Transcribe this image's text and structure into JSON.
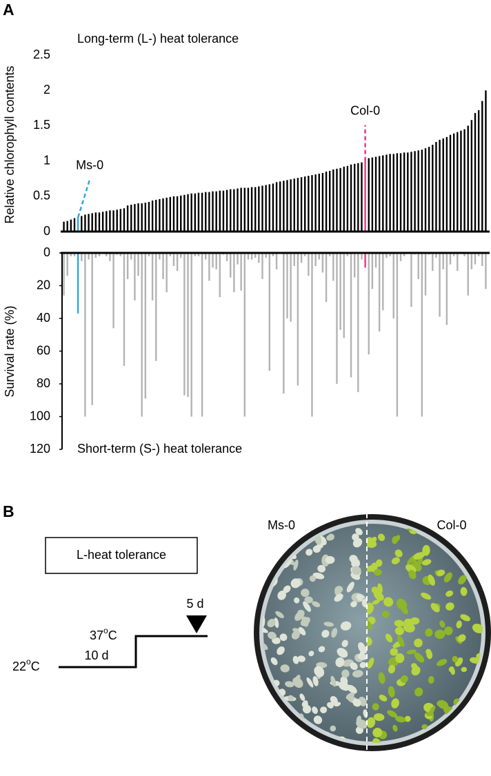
{
  "panel_labels": [
    "A",
    "B"
  ],
  "chart_data": [
    {
      "type": "bar",
      "title": "Long-term (L-) heat tolerance",
      "y_label": "Relative chlorophyll contents",
      "categories": [
        null,
        null,
        null,
        null,
        "Ms-0",
        null,
        null,
        null,
        null,
        null,
        null,
        null,
        null,
        null,
        null,
        null,
        null,
        null,
        null,
        null,
        null,
        null,
        null,
        null,
        null,
        null,
        null,
        null,
        null,
        null,
        null,
        null,
        null,
        null,
        null,
        null,
        null,
        null,
        null,
        null,
        null,
        null,
        null,
        null,
        null,
        null,
        null,
        null,
        null,
        null,
        null,
        null,
        null,
        null,
        null,
        null,
        null,
        null,
        null,
        null,
        null,
        null,
        null,
        null,
        null,
        null,
        null,
        null,
        null,
        null,
        null,
        null,
        null,
        null,
        null,
        null,
        null,
        null,
        null,
        null,
        null,
        null,
        null,
        null,
        null,
        "Col-0",
        null,
        null,
        null,
        null,
        null,
        null,
        null,
        null,
        null,
        null,
        null,
        null,
        null,
        null,
        null,
        null,
        null,
        null,
        null,
        null,
        null,
        null,
        null,
        null,
        null,
        null,
        null,
        null,
        null,
        null,
        null,
        null,
        null,
        null
      ],
      "values": [
        0.14,
        0.15,
        0.17,
        0.19,
        0.2,
        0.22,
        0.24,
        0.25,
        0.26,
        0.27,
        0.27,
        0.28,
        0.29,
        0.3,
        0.3,
        0.31,
        0.32,
        0.33,
        0.37,
        0.38,
        0.39,
        0.4,
        0.4,
        0.41,
        0.42,
        0.44,
        0.45,
        0.46,
        0.47,
        0.48,
        0.49,
        0.5,
        0.5,
        0.51,
        0.52,
        0.53,
        0.54,
        0.54,
        0.55,
        0.55,
        0.56,
        0.56,
        0.57,
        0.57,
        0.58,
        0.58,
        0.59,
        0.6,
        0.6,
        0.61,
        0.62,
        0.62,
        0.62,
        0.63,
        0.63,
        0.64,
        0.65,
        0.66,
        0.67,
        0.68,
        0.7,
        0.71,
        0.72,
        0.73,
        0.74,
        0.75,
        0.76,
        0.77,
        0.78,
        0.79,
        0.8,
        0.81,
        0.82,
        0.83,
        0.85,
        0.86,
        0.88,
        0.89,
        0.9,
        0.92,
        0.93,
        0.95,
        0.96,
        0.97,
        0.98,
        1.0,
        1.04,
        1.05,
        1.06,
        1.07,
        1.08,
        1.09,
        1.1,
        1.1,
        1.11,
        1.11,
        1.12,
        1.12,
        1.13,
        1.14,
        1.15,
        1.16,
        1.18,
        1.2,
        1.23,
        1.27,
        1.3,
        1.32,
        1.34,
        1.37,
        1.39,
        1.41,
        1.43,
        1.45,
        1.5,
        1.58,
        1.68,
        1.72,
        1.85,
        2.0
      ],
      "color": "#000000",
      "highlight_colors": [
        "#2aa7df",
        "#e23d84"
      ],
      "ylim": [
        0,
        2.5
      ],
      "yticks": [
        0,
        0.5,
        1,
        1.5,
        2,
        2.5
      ]
    },
    {
      "type": "bar",
      "title": "Short-term (S-) heat tolerance",
      "y_label": "Survival rate (%)",
      "values": [
        26,
        14,
        2,
        2,
        37,
        5,
        100,
        4,
        93,
        3,
        2,
        0,
        2,
        5,
        46,
        1,
        2,
        69,
        16,
        4,
        29,
        14,
        100,
        89,
        2,
        29,
        66,
        4,
        16,
        24,
        2,
        8,
        11,
        3,
        87,
        88,
        100,
        2,
        2,
        100,
        4,
        17,
        9,
        10,
        27,
        1,
        5,
        15,
        24,
        7,
        23,
        100,
        4,
        4,
        3,
        6,
        16,
        3,
        72,
        2,
        10,
        0,
        86,
        40,
        42,
        8,
        81,
        6,
        2,
        14,
        100,
        8,
        4,
        12,
        30,
        2,
        17,
        80,
        47,
        52,
        2,
        76,
        15,
        85,
        4,
        9,
        62,
        22,
        9,
        48,
        35,
        3,
        2,
        40,
        100,
        5,
        2,
        0,
        33,
        1,
        16,
        100,
        26,
        1,
        11,
        3,
        39,
        10,
        44,
        7,
        2,
        11,
        0,
        2,
        26,
        10,
        7,
        2,
        8,
        22
      ],
      "color": "#b3b3b3",
      "highlight_colors": [
        "#2aa7df",
        "#e23d84"
      ],
      "ylim": [
        0,
        120
      ],
      "y_inverted": true,
      "yticks": [
        0,
        20,
        40,
        60,
        80,
        100,
        120
      ]
    }
  ],
  "protocol": {
    "box": "L-heat tolerance",
    "low_temp": [
      "22",
      "o",
      "C"
    ],
    "high_temp": [
      "37",
      "o",
      "C"
    ],
    "low_duration": "10 d",
    "high_duration": "5 d"
  },
  "photo": {
    "left": "Ms-0",
    "right": "Col-0"
  }
}
